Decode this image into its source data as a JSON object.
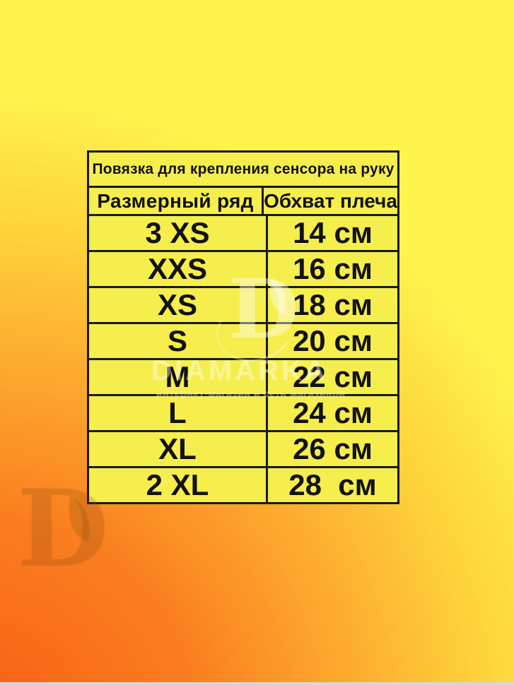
{
  "chart_data": {
    "type": "table",
    "title": "Повязка для крепления сенсора на руку",
    "columns": [
      "Размерный ряд",
      "Обхват плеча"
    ],
    "rows": [
      [
        "3 XS",
        "14 см"
      ],
      [
        "XXS",
        "16 см"
      ],
      [
        "XS",
        "18 см"
      ],
      [
        "S",
        "20 см"
      ],
      [
        "M",
        "22 см"
      ],
      [
        "L",
        "24 см"
      ],
      [
        "XL",
        "26 см"
      ],
      [
        "2 XL",
        "28  см"
      ]
    ],
    "girth_values_cm": [
      14,
      16,
      18,
      20,
      22,
      24,
      26,
      28
    ],
    "layout": "two-column bordered table on yellow card"
  },
  "watermark": {
    "logo_letter": "D",
    "brand": "DIAMARKA",
    "tagline": "интернет-магазин и сеть магазинов"
  },
  "colors": {
    "background_yellow": "#FFF44E",
    "background_orange": "#F95D15",
    "table_fill": "#F5EE4D",
    "border_black": "#191919"
  }
}
